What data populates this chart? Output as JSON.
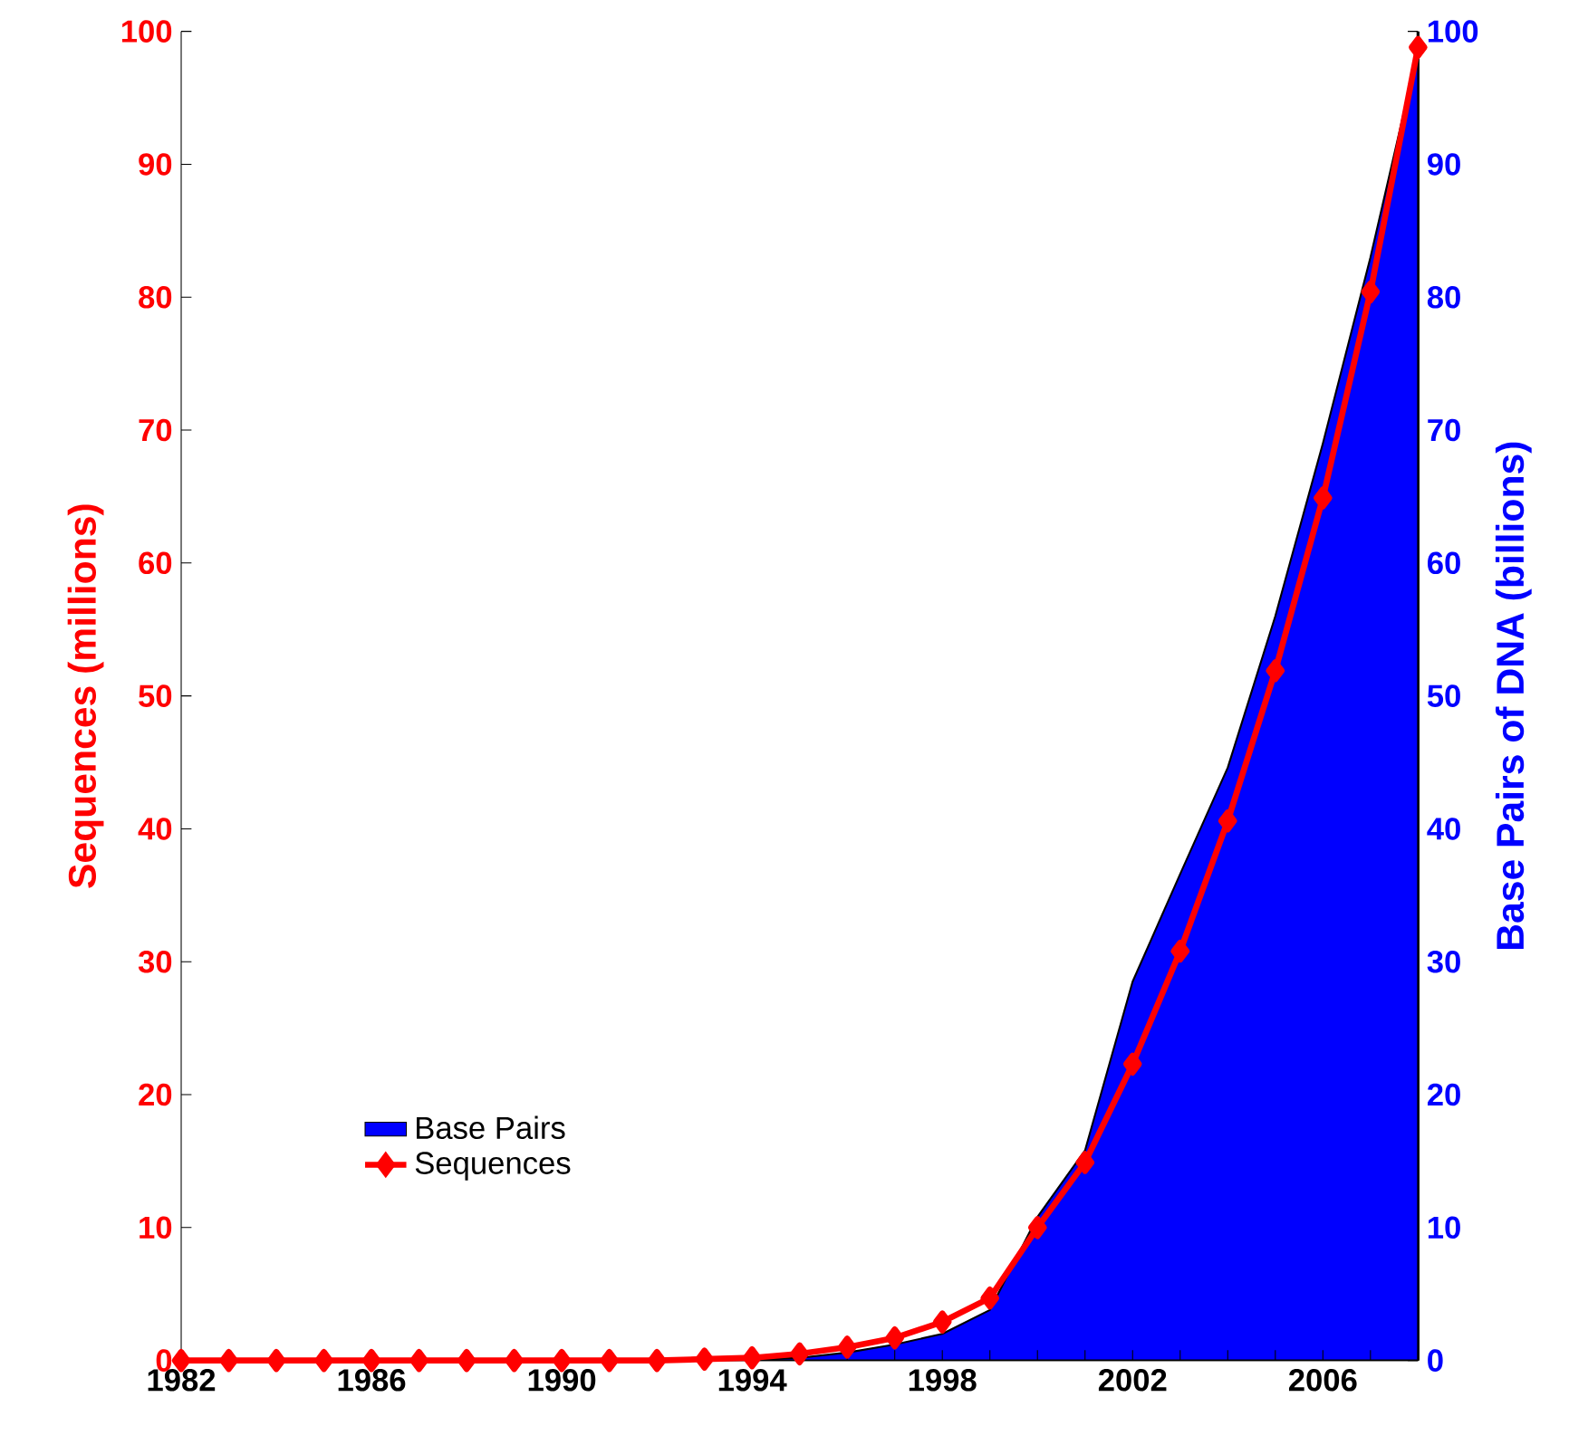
{
  "chart_data": {
    "type": "line",
    "ylabel": "Sequences (millions)",
    "y2label": "Base Pairs of DNA (billions)",
    "x": [
      1982,
      1983,
      1984,
      1985,
      1986,
      1987,
      1988,
      1989,
      1990,
      1991,
      1992,
      1993,
      1994,
      1995,
      1996,
      1997,
      1998,
      1999,
      2000,
      2001,
      2002,
      2003,
      2004,
      2005,
      2006,
      2007,
      2008
    ],
    "series": [
      {
        "name": "Base Pairs",
        "type": "area",
        "axis": "y2",
        "color": "#0000ff",
        "values": [
          0,
          0,
          0,
          0,
          0,
          0,
          0,
          0,
          0,
          0,
          0,
          0,
          0.1,
          0.2,
          0.6,
          1.2,
          2.0,
          3.8,
          10.8,
          15.8,
          28.5,
          36.6,
          44.6,
          56.0,
          69.0,
          83.0,
          98.5
        ]
      },
      {
        "name": "Sequences",
        "color": "#ff0000",
        "marker": "diamond",
        "values": [
          0,
          0,
          0,
          0,
          0,
          0,
          0,
          0,
          0,
          0,
          0,
          0.1,
          0.2,
          0.5,
          1.0,
          1.7,
          2.9,
          4.7,
          10.0,
          14.9,
          22.3,
          30.8,
          40.6,
          51.9,
          64.9,
          80.4,
          98.8
        ]
      }
    ],
    "xlim": [
      1982,
      2008
    ],
    "xticks": [
      1982,
      {
        "value": 1983,
        "label": null
      },
      {
        "value": 1984,
        "label": null
      },
      {
        "value": 1985,
        "label": null
      },
      1986,
      {
        "value": 1987,
        "label": null
      },
      {
        "value": 1988,
        "label": null
      },
      {
        "value": 1989,
        "label": null
      },
      1990,
      {
        "value": 1991,
        "label": null
      },
      {
        "value": 1992,
        "label": null
      },
      {
        "value": 1993,
        "label": null
      },
      1994,
      {
        "value": 1995,
        "label": null
      },
      {
        "value": 1996,
        "label": null
      },
      {
        "value": 1997,
        "label": null
      },
      1998,
      {
        "value": 1999,
        "label": null
      },
      {
        "value": 2000,
        "label": null
      },
      {
        "value": 2001,
        "label": null
      },
      2002,
      {
        "value": 2003,
        "label": null
      },
      {
        "value": 2004,
        "label": null
      },
      {
        "value": 2005,
        "label": null
      },
      2006,
      {
        "value": 2007,
        "label": null
      },
      {
        "value": 2008,
        "label": null
      }
    ],
    "ylim": [
      0,
      100
    ],
    "yticks": [
      0,
      10,
      20,
      30,
      40,
      50,
      60,
      70,
      80,
      90,
      100
    ],
    "y2lim": [
      0,
      100
    ],
    "y2ticks": [
      0,
      10,
      20,
      30,
      40,
      50,
      60,
      70,
      80,
      90,
      100
    ],
    "grid": false,
    "legend": "bottom left"
  }
}
